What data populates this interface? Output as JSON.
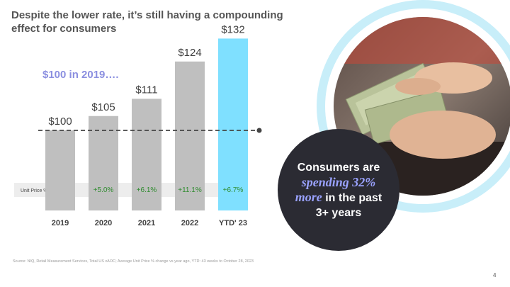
{
  "slide": {
    "title": "Despite the lower rate, it’s still having a compounding effect for consumers",
    "subtitle": "$100 in 2019….",
    "source": "Source: NIQ, Retail Measurement Services, Total US xAOC; Average Unit Price % change vs year ago, YTD: 43 weeks to October 28, 2023",
    "page_number": "4"
  },
  "callout": {
    "line1": "Consumers are",
    "line2_highlight": "spending 32%",
    "line3_highlight": "more",
    "line3_rest": " in the past",
    "line4": "3+ years"
  },
  "chart_data": {
    "type": "bar",
    "title": "",
    "categories": [
      "2019",
      "2020",
      "2021",
      "2022",
      "YTD' 23"
    ],
    "values": [
      100,
      105,
      111,
      124,
      132
    ],
    "value_labels": [
      "$100",
      "$105",
      "$111",
      "$124",
      "$132"
    ],
    "unit_price_change_label": "Unit Price % Change",
    "unit_price_change": [
      "",
      "+5.0%",
      "+6.1%",
      "+11.1%",
      "+6.7%"
    ],
    "reference_line": 100,
    "colors": {
      "bar": "#bfbfbf",
      "highlight_bar": "#7fe0ff",
      "band": "#eaeaea",
      "positive_text": "#2e8b2e",
      "accent_ring": "#c8eef9"
    }
  }
}
